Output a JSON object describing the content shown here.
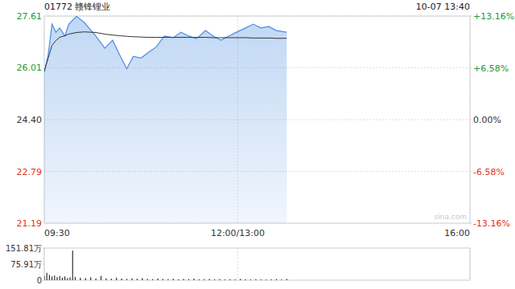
{
  "chart_data": [
    {
      "type": "line",
      "title": "01772 赣锋锂业",
      "subtitle": "10-07 13:40",
      "annotations": [
        "sina.com"
      ],
      "x": [
        0,
        3,
        6,
        9,
        12,
        16,
        19,
        25,
        31,
        40,
        47,
        53,
        59,
        64,
        69,
        75,
        81,
        87,
        93,
        100,
        106,
        112,
        118,
        125,
        131,
        137,
        143,
        149,
        156,
        162,
        168,
        174,
        180,
        188
      ],
      "xlim": [
        0,
        330
      ],
      "xticks": [
        {
          "value": 0,
          "label": "09:30"
        },
        {
          "value": 150,
          "label": "12:00/13:00"
        },
        {
          "value": 330,
          "label": "16:00"
        }
      ],
      "ylim": [
        21.19,
        27.61
      ],
      "yticks": [
        27.61,
        26.01,
        {
          "value": 24.4,
          "label": "24.40"
        },
        22.79,
        21.19
      ],
      "y2lim": [
        -13.16,
        13.16
      ],
      "y2ticks": [
        {
          "value": 13.16,
          "label": "+13.16%"
        },
        {
          "value": 6.58,
          "label": "+6.58%"
        },
        {
          "value": 0,
          "label": "0.00%"
        },
        {
          "value": -6.58,
          "label": "-6.58%"
        },
        {
          "value": -13.16,
          "label": "-13.16%"
        }
      ],
      "grid": true,
      "series": [
        {
          "color": "#4a8de0",
          "type": "area",
          "values": [
            25.87,
            26.4,
            27.36,
            27.11,
            27.24,
            26.99,
            27.36,
            27.6,
            27.41,
            26.99,
            26.61,
            26.86,
            26.36,
            25.98,
            26.36,
            26.31,
            26.49,
            26.66,
            26.99,
            26.94,
            27.11,
            26.99,
            26.91,
            27.16,
            26.99,
            26.86,
            26.99,
            27.11,
            27.24,
            27.36,
            27.24,
            27.29,
            27.16,
            27.11
          ]
        },
        {
          "color": "#333333",
          "type": "line",
          "values": [
            25.9,
            26.3,
            26.7,
            26.85,
            26.95,
            27.0,
            27.05,
            27.1,
            27.12,
            27.1,
            27.05,
            27.02,
            27.0,
            26.98,
            26.97,
            26.96,
            26.95,
            26.95,
            26.95,
            26.95,
            26.95,
            26.95,
            26.95,
            26.95,
            26.94,
            26.94,
            26.94,
            26.94,
            26.94,
            26.93,
            26.93,
            26.93,
            26.92,
            26.92
          ]
        }
      ]
    },
    {
      "type": "bar",
      "x": [
        0,
        2,
        4,
        6,
        8,
        10,
        12,
        14,
        16,
        18,
        20,
        22,
        24,
        28,
        32,
        36,
        40,
        44,
        48,
        52,
        56,
        60,
        64,
        68,
        72,
        76,
        80,
        84,
        88,
        92,
        96,
        100,
        104,
        108,
        112,
        116,
        120,
        124,
        128,
        132,
        136,
        140,
        144,
        148,
        152,
        156,
        160,
        164,
        168,
        172,
        176,
        180,
        184,
        188
      ],
      "values": [
        20,
        35,
        25,
        18,
        22,
        15,
        20,
        12,
        18,
        10,
        14,
        140,
        16,
        12,
        10,
        14,
        8,
        20,
        9,
        7,
        12,
        8,
        6,
        9,
        7,
        10,
        6,
        5,
        8,
        6,
        5,
        7,
        4,
        6,
        5,
        8,
        4,
        5,
        6,
        4,
        5,
        3,
        5,
        4,
        6,
        4,
        3,
        5,
        4,
        3,
        4,
        5,
        3,
        6
      ],
      "color": "#333333",
      "xlim": [
        0,
        330
      ],
      "ylim": [
        0,
        151.81
      ],
      "yticks": [
        {
          "value": 151.81,
          "label": "151.81万"
        },
        {
          "value": 75.91,
          "label": "75.91万"
        },
        0
      ],
      "tick_labels": "y"
    }
  ]
}
